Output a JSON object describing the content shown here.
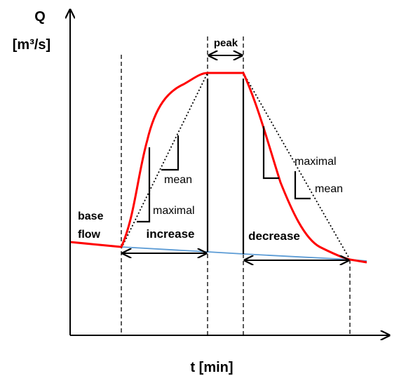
{
  "axes": {
    "y_label_line1": "Q",
    "y_label_line2": "[m³/s]",
    "x_label": "t [min]"
  },
  "labels": {
    "peak": "peak",
    "base_flow_line1": "base",
    "base_flow_line2": "flow",
    "increase": "increase",
    "decrease": "decrease",
    "rise_maximal": "maximal",
    "rise_mean": "mean",
    "fall_maximal": "maximal",
    "fall_mean": "mean"
  },
  "colors": {
    "hydrograph": "#ff0000",
    "baseflow": "#5b9bd5",
    "axes": "#000000",
    "guides": "#000000"
  }
}
